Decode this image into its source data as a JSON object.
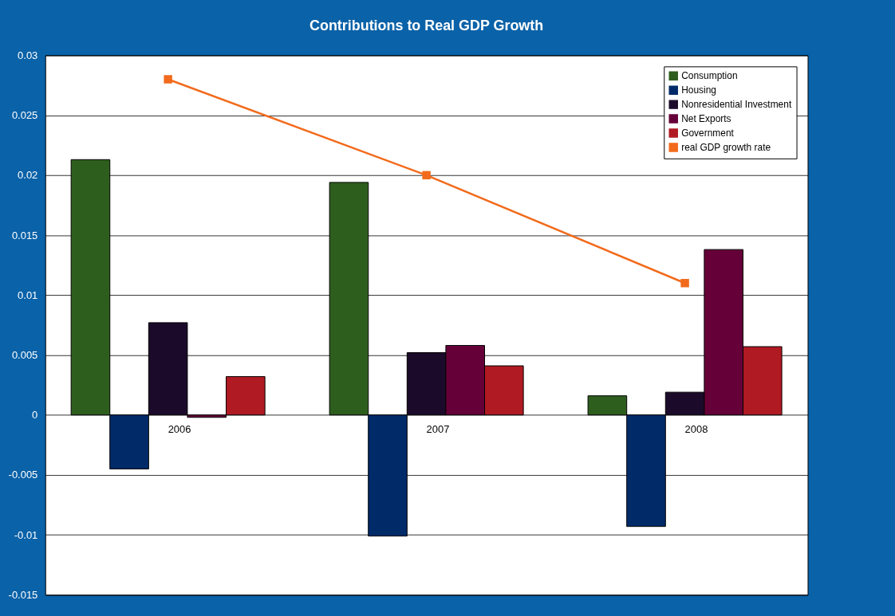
{
  "chart_data": {
    "type": "bar",
    "title": "Contributions to Real GDP Growth",
    "categories": [
      "2006",
      "2007",
      "2008"
    ],
    "series": [
      {
        "name": "Consumption",
        "color": "#2e5e1e",
        "values": [
          0.0213,
          0.0194,
          0.0016
        ]
      },
      {
        "name": "Housing",
        "color": "#002a68",
        "values": [
          -0.0045,
          -0.0101,
          -0.0093
        ]
      },
      {
        "name": "Nonresidential Investment",
        "color": "#1c0a2a",
        "values": [
          0.0077,
          0.0052,
          0.0019
        ]
      },
      {
        "name": "Net Exports",
        "color": "#660038",
        "values": [
          -0.0002,
          0.0058,
          0.0138
        ]
      },
      {
        "name": "Government",
        "color": "#b01a22",
        "values": [
          0.0032,
          0.0041,
          0.0057
        ]
      },
      {
        "name": "real GDP growth rate",
        "type": "line",
        "color": "#f26a1b",
        "marker": "square",
        "values": [
          0.028,
          0.02,
          0.011
        ]
      }
    ],
    "ylim": [
      -0.015,
      0.03
    ],
    "yticks": [
      -0.015,
      -0.01,
      -0.005,
      0,
      0.005,
      0.01,
      0.015,
      0.02,
      0.025,
      0.03
    ],
    "grid": "y",
    "legend": "top right"
  }
}
